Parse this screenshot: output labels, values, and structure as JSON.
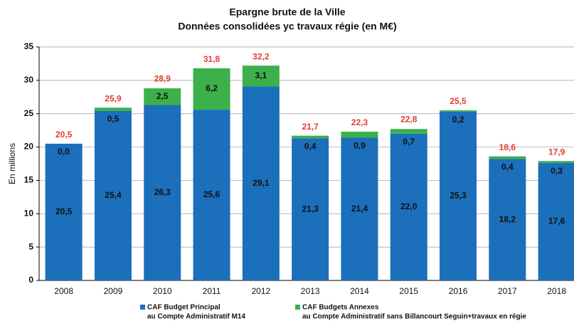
{
  "chart_data": {
    "type": "stacked_bar",
    "title": "Epargne brute de la Ville",
    "subtitle": "Données consolidées yc travaux régie (en M€)",
    "y_label": "En millions",
    "categories": [
      "2008",
      "2009",
      "2010",
      "2011",
      "2012",
      "2013",
      "2014",
      "2015",
      "2016",
      "2017",
      "2018"
    ],
    "series": [
      {
        "name": "CAF Budget Principal",
        "legend_detail": "au Compte Administratif M14",
        "color": "#1b6fbb",
        "values": [
          20.5,
          25.4,
          26.3,
          25.6,
          29.1,
          21.3,
          21.4,
          22.0,
          25.3,
          18.2,
          17.6
        ],
        "value_labels": [
          "20,5",
          "25,4",
          "26,3",
          "25,6",
          "29,1",
          "21,3",
          "21,4",
          "22,0",
          "25,3",
          "18,2",
          "17,6"
        ]
      },
      {
        "name": "CAF Budgets Annexes",
        "legend_detail": "au Compte Administratif sans Billancourt Seguin+travaux en régie",
        "color": "#3bb04b",
        "values": [
          0.0,
          0.5,
          2.5,
          6.2,
          3.1,
          0.4,
          0.9,
          0.7,
          0.2,
          0.4,
          0.3
        ],
        "value_labels": [
          "0,0",
          "0,5",
          "2,5",
          "6,2",
          "3,1",
          "0,4",
          "0,9",
          "0,7",
          "0,2",
          "0,4",
          "0,3"
        ]
      }
    ],
    "totals": {
      "values": [
        20.5,
        25.9,
        28.9,
        31.8,
        32.2,
        21.7,
        22.3,
        22.8,
        25.5,
        18.6,
        17.9
      ],
      "value_labels": [
        "20,5",
        "25,9",
        "28,9",
        "31,8",
        "32,2",
        "21,7",
        "22,3",
        "22,8",
        "25,5",
        "18,6",
        "17,9"
      ]
    },
    "ylim": [
      0,
      35
    ],
    "yticks": [
      0,
      5,
      10,
      15,
      20,
      25,
      30,
      35
    ],
    "grid": true
  }
}
